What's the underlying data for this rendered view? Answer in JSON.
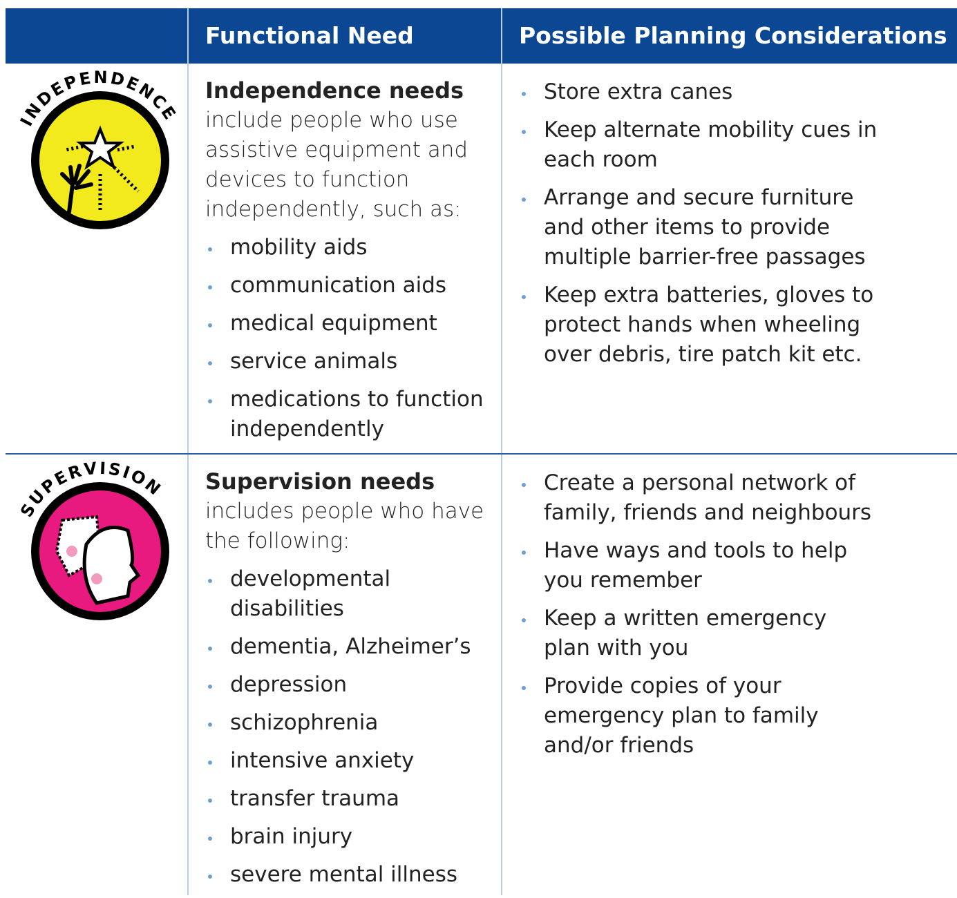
{
  "header": {
    "col1": "Functional Need",
    "col2": "Possible Planning Considerations"
  },
  "rows": [
    {
      "icon_label": "INDEPENDENCE",
      "icon_color": "#f2ea1c",
      "heading": "Independence needs",
      "description": "include people who use assistive equipment and devices to function independently, such as:",
      "items": [
        "mobility aids",
        "communication aids",
        "medical equipment",
        "service animals",
        "medications to function independently"
      ],
      "considerations": [
        "Store extra canes",
        "Keep alternate mobility cues in each room",
        "Arrange and secure furniture and other items to provide multiple barrier-free passages",
        "Keep extra batteries, gloves to protect hands when wheeling over debris, tire patch kit etc."
      ]
    },
    {
      "icon_label": "SUPERVISION",
      "icon_color": "#e8197f",
      "heading": "Supervision needs",
      "description": "includes people who have the following:",
      "items": [
        "developmental disabilities",
        "dementia, Alzheimer’s",
        "depression",
        "schizophrenia",
        "intensive anxiety",
        "transfer trauma",
        "brain injury",
        "severe mental illness"
      ],
      "considerations": [
        "Create a personal network of family, friends and neighbours",
        "Have ways and tools to help you remember",
        "Keep a written emergency plan with you",
        "Provide copies of your emergency plan to family and/or friends"
      ]
    }
  ]
}
